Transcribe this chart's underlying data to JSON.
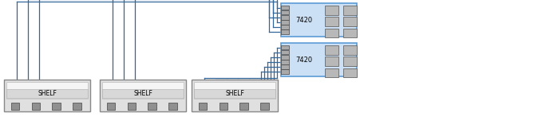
{
  "bg_color": "#ffffff",
  "ctrl_fill": "#cce0f5",
  "ctrl_stroke": "#5b9bd5",
  "ctrl_fill2": "#ddeeff",
  "hba_fill": "#b8b8b8",
  "hba_stroke": "#666666",
  "shelf_outer_fill": "#e0e0e0",
  "shelf_outer_stroke": "#888888",
  "shelf_inner_fill": "#f5f5f5",
  "shelf_label_fill": "#d8d8d8",
  "shelf_port_fill": "#909090",
  "line_color": "#336699",
  "text_color": "#000000",
  "label_7420": "7420",
  "label_shelf": "SHELF",
  "figsize": [
    6.79,
    1.47
  ],
  "dpi": 100
}
